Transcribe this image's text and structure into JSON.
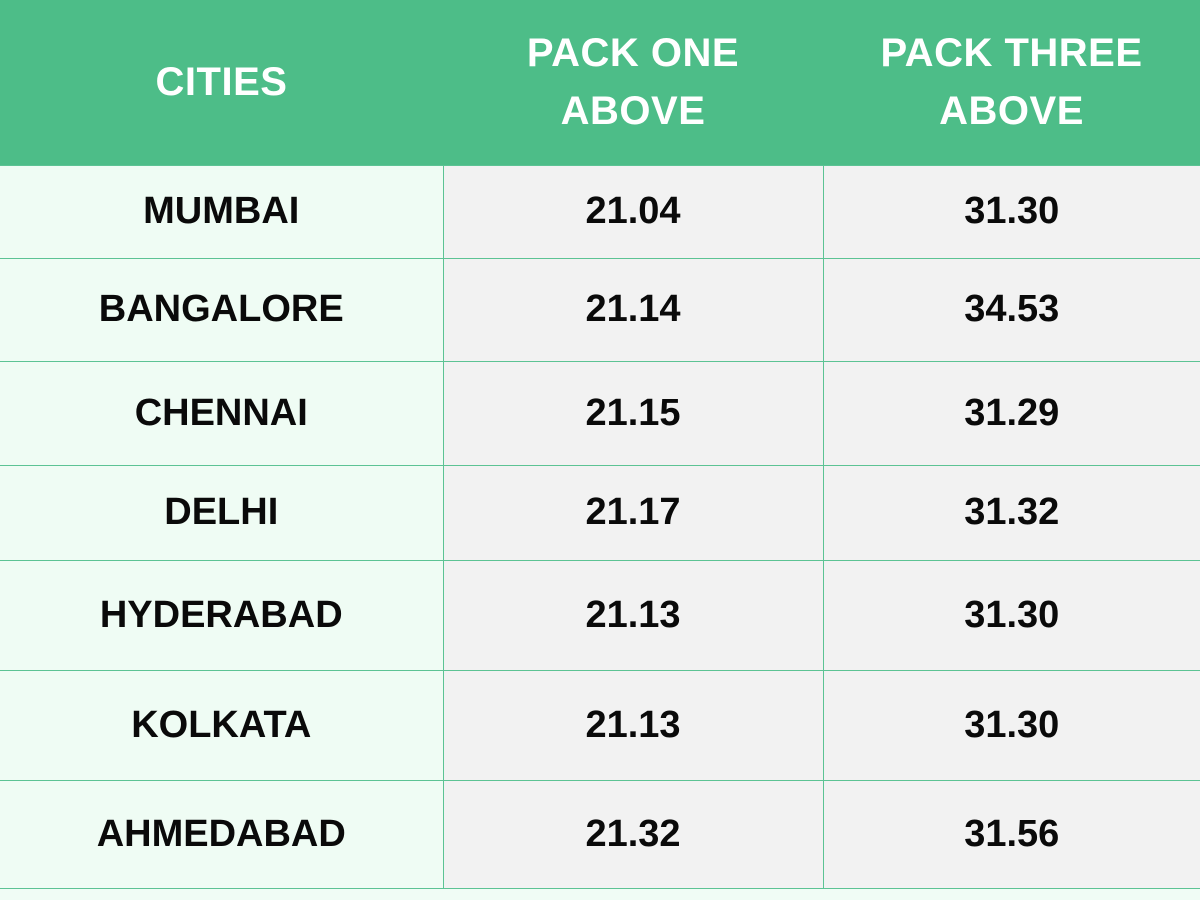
{
  "table": {
    "headers": {
      "cities": "CITIES",
      "pack_one": [
        "PACK ONE",
        "ABOVE"
      ],
      "pack_three": [
        "PACK THREE",
        "ABOVE"
      ]
    },
    "rows": [
      {
        "city": "MUMBAI",
        "pack_one": "21.04",
        "pack_three": "31.30"
      },
      {
        "city": "BANGALORE",
        "pack_one": "21.14",
        "pack_three": "34.53"
      },
      {
        "city": "CHENNAI",
        "pack_one": "21.15",
        "pack_three": "31.29"
      },
      {
        "city": "DELHI",
        "pack_one": "21.17",
        "pack_three": "31.32"
      },
      {
        "city": "HYDERABAD",
        "pack_one": "21.13",
        "pack_three": "31.30"
      },
      {
        "city": "KOLKATA",
        "pack_one": "21.13",
        "pack_three": "31.30"
      },
      {
        "city": "AHMEDABAD",
        "pack_one": "21.32",
        "pack_three": "31.56"
      }
    ]
  },
  "colors": {
    "header_bg": "#4dbd88",
    "header_text": "#ffffff",
    "city_cell_bg": "#effcf4",
    "value_cell_bg": "#f2f2f2",
    "grid_line": "#5cc394",
    "body_text": "#0a0a0a"
  }
}
